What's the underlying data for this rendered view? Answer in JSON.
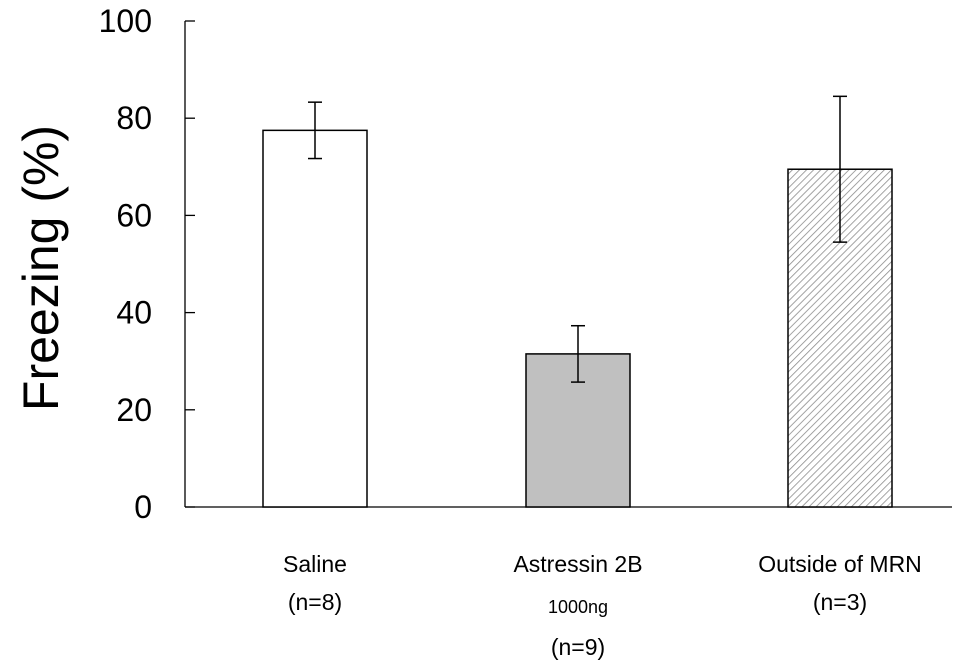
{
  "chart_data": {
    "type": "bar",
    "ylabel": "Freezing (%)",
    "xlabel": "",
    "ylim": [
      0,
      100
    ],
    "yticks": [
      0,
      20,
      40,
      60,
      80,
      100
    ],
    "grid": false,
    "categories": [
      {
        "lines": [
          "Saline",
          "(n=8)"
        ],
        "small_line": -1
      },
      {
        "lines": [
          "Astressin 2B",
          "1000ng",
          "(n=9)"
        ],
        "small_line": 1
      },
      {
        "lines": [
          "Outside of MRN",
          "(n=3)"
        ],
        "small_line": -1
      }
    ],
    "values": [
      77.5,
      31.5,
      69.5
    ],
    "errors": [
      5.8,
      5.8,
      15.0
    ],
    "bar_styles": [
      {
        "fill": "#ffffff",
        "pattern": "none"
      },
      {
        "fill": "#c0c0c0",
        "pattern": "none"
      },
      {
        "fill": "#ffffff",
        "pattern": "diagonal-hatch"
      }
    ],
    "colors": {
      "axis": "#000000",
      "bar_stroke": "#000000",
      "hatch": "#8c8c8c"
    }
  }
}
